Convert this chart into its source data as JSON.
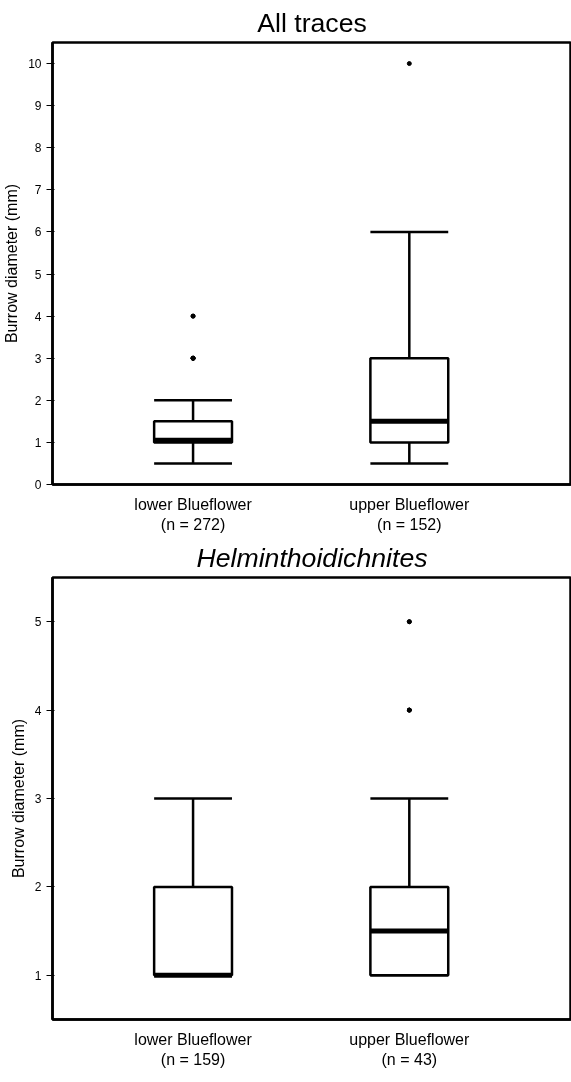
{
  "chart_data": [
    {
      "type": "box",
      "title": "All traces",
      "ylabel": "Burrow diameter (mm)",
      "categories": [
        "lower Blueflower\n(n = 272)",
        "upper Blueflower\n(n = 152)"
      ],
      "boxes": [
        {
          "low": 0.5,
          "q1": 1,
          "median": 1.05,
          "q3": 1.5,
          "high": 2,
          "outliers": [
            4,
            4,
            3,
            3,
            3,
            3
          ]
        },
        {
          "low": 0.5,
          "q1": 1,
          "median": 1.5,
          "q3": 3,
          "high": 6,
          "outliers": [
            10
          ]
        }
      ],
      "ylim": [
        0,
        10.5
      ],
      "yticks": [
        0,
        1,
        2,
        3,
        4,
        5,
        6,
        7,
        8,
        9,
        10
      ],
      "grid": false
    },
    {
      "type": "box",
      "title": "Helminthoidichnites",
      "ylabel": "Burrow diameter (mm)",
      "categories": [
        "lower Blueflower\n(n = 159)",
        "upper Blueflower\n(n = 43)"
      ],
      "boxes": [
        {
          "low": 1,
          "q1": 1,
          "median": 1,
          "q3": 2,
          "high": 3
        },
        {
          "low": 1,
          "q1": 1,
          "median": 1.5,
          "q3": 2,
          "high": 3,
          "outliers": [
            5,
            5,
            4,
            4,
            4
          ]
        }
      ],
      "ylim": [
        0.5,
        5.5
      ],
      "yticks": [
        1,
        2,
        3,
        4,
        5
      ],
      "grid": false
    }
  ]
}
